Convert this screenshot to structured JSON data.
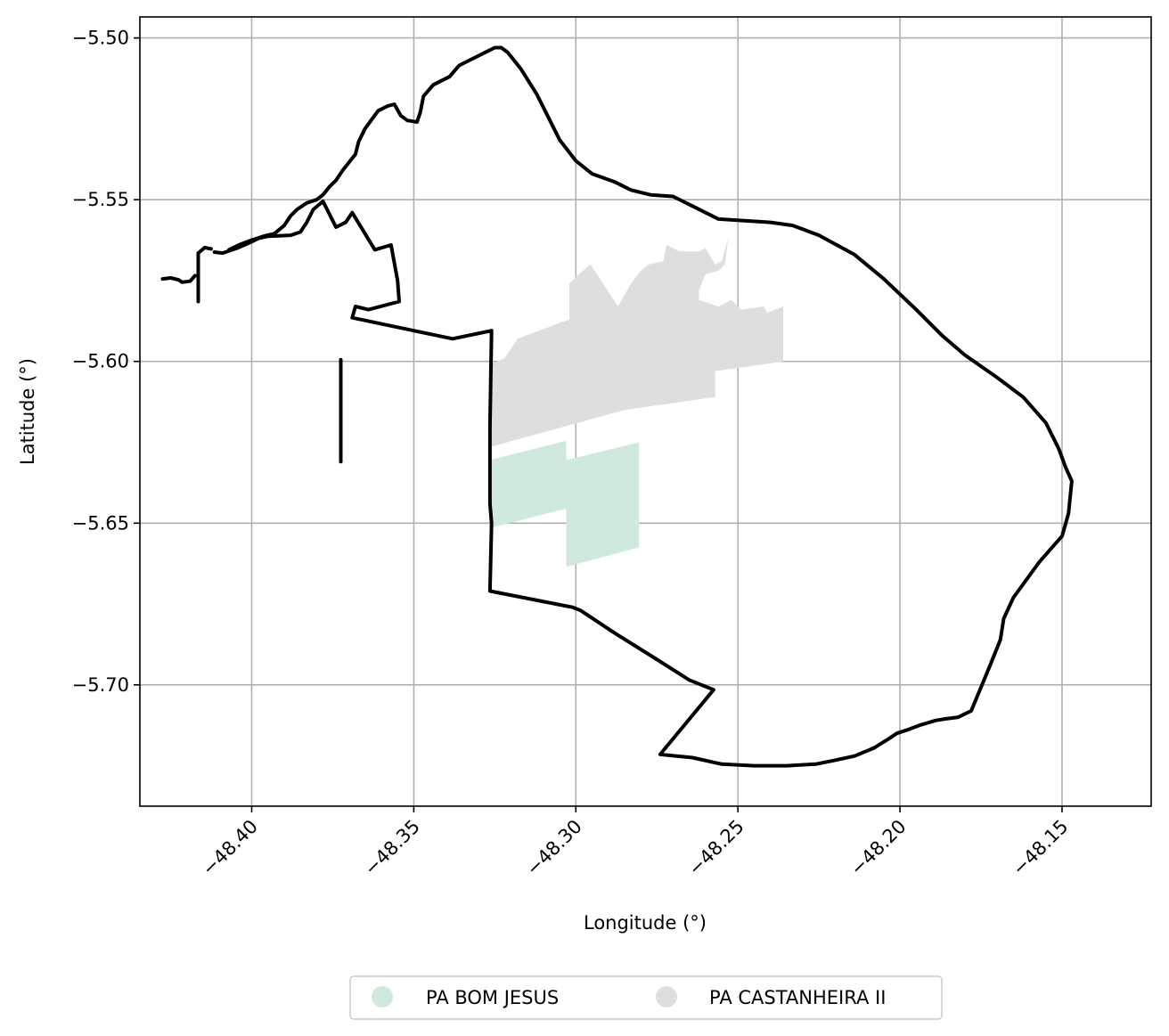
{
  "chart_data": {
    "type": "map",
    "xlabel": "Longitude (°)",
    "ylabel": "Latitude (°)",
    "xlim": [
      -48.4345,
      -48.1225
    ],
    "ylim": [
      -5.7375,
      -5.4935
    ],
    "grid": true,
    "x_ticks": [
      {
        "value": -48.4,
        "label": "−48.40"
      },
      {
        "value": -48.35,
        "label": "−48.35"
      },
      {
        "value": -48.3,
        "label": "−48.30"
      },
      {
        "value": -48.25,
        "label": "−48.25"
      },
      {
        "value": -48.2,
        "label": "−48.20"
      },
      {
        "value": -48.15,
        "label": "−48.15"
      }
    ],
    "y_ticks": [
      {
        "value": -5.5,
        "label": "−5.50"
      },
      {
        "value": -5.55,
        "label": "−5.55"
      },
      {
        "value": -5.6,
        "label": "−5.60"
      },
      {
        "value": -5.65,
        "label": "−5.65"
      },
      {
        "value": -5.7,
        "label": "−5.70"
      }
    ],
    "legend_position": "bottom-center",
    "areas": [
      {
        "name": "PA BOM JESUS",
        "color": "#cfeadd",
        "polygons": [
          [
            [
              -48.3265,
              -5.6305
            ],
            [
              -48.303,
              -5.6245
            ],
            [
              -48.303,
              -5.6305
            ],
            [
              -48.2805,
              -5.625
            ],
            [
              -48.2805,
              -5.6575
            ],
            [
              -48.303,
              -5.6635
            ],
            [
              -48.303,
              -5.6455
            ],
            [
              -48.3265,
              -5.6515
            ]
          ]
        ]
      },
      {
        "name": "PA CASTANHEIRA II",
        "color": "#dedede",
        "polygons": [
          [
            [
              -48.3265,
              -5.6265
            ],
            [
              -48.3265,
              -5.601
            ],
            [
              -48.322,
              -5.599
            ],
            [
              -48.318,
              -5.593
            ],
            [
              -48.302,
              -5.587
            ],
            [
              -48.302,
              -5.576
            ],
            [
              -48.299,
              -5.573
            ],
            [
              -48.2955,
              -5.57
            ],
            [
              -48.287,
              -5.583
            ],
            [
              -48.283,
              -5.576
            ],
            [
              -48.28,
              -5.572
            ],
            [
              -48.2775,
              -5.57
            ],
            [
              -48.273,
              -5.569
            ],
            [
              -48.272,
              -5.564
            ],
            [
              -48.268,
              -5.566
            ],
            [
              -48.262,
              -5.566
            ],
            [
              -48.26,
              -5.565
            ],
            [
              -48.257,
              -5.57
            ],
            [
              -48.255,
              -5.569
            ],
            [
              -48.253,
              -5.562
            ],
            [
              -48.254,
              -5.57
            ],
            [
              -48.256,
              -5.572
            ],
            [
              -48.26,
              -5.573
            ],
            [
              -48.262,
              -5.578
            ],
            [
              -48.262,
              -5.581
            ],
            [
              -48.256,
              -5.583
            ],
            [
              -48.252,
              -5.581
            ],
            [
              -48.249,
              -5.584
            ],
            [
              -48.242,
              -5.583
            ],
            [
              -48.241,
              -5.585
            ],
            [
              -48.236,
              -5.583
            ],
            [
              -48.236,
              -5.6
            ],
            [
              -48.257,
              -5.603
            ],
            [
              -48.257,
              -5.611
            ],
            [
              -48.285,
              -5.615
            ]
          ]
        ]
      }
    ],
    "boundary": {
      "color": "#000000",
      "lines": [
        [
          [
            -48.4275,
            -5.5745
          ],
          [
            -48.425,
            -5.5742
          ],
          [
            -48.4225,
            -5.5748
          ],
          [
            -48.4215,
            -5.5755
          ],
          [
            -48.419,
            -5.5752
          ],
          [
            -48.4175,
            -5.5735
          ]
        ],
        [
          [
            -48.4165,
            -5.5815
          ],
          [
            -48.4165,
            -5.5665
          ],
          [
            -48.4145,
            -5.5648
          ],
          [
            -48.4125,
            -5.5652
          ]
        ],
        [
          [
            -48.4115,
            -5.5662
          ],
          [
            -48.409,
            -5.5665
          ],
          [
            -48.4045,
            -5.565
          ],
          [
            -48.4,
            -5.563
          ],
          [
            -48.398,
            -5.562
          ],
          [
            -48.395,
            -5.5613
          ],
          [
            -48.388,
            -5.561
          ],
          [
            -48.385,
            -5.56
          ],
          [
            -48.383,
            -5.557
          ],
          [
            -48.381,
            -5.553
          ],
          [
            -48.378,
            -5.5505
          ],
          [
            -48.374,
            -5.5585
          ],
          [
            -48.371,
            -5.557
          ],
          [
            -48.369,
            -5.554
          ],
          [
            -48.362,
            -5.5655
          ],
          [
            -48.357,
            -5.564
          ],
          [
            -48.355,
            -5.575
          ],
          [
            -48.3545,
            -5.5815
          ],
          [
            -48.364,
            -5.584
          ],
          [
            -48.368,
            -5.583
          ],
          [
            -48.369,
            -5.5865
          ],
          [
            -48.35,
            -5.5905
          ],
          [
            -48.338,
            -5.593
          ],
          [
            -48.326,
            -5.5905
          ],
          [
            -48.3265,
            -5.62
          ],
          [
            -48.3265,
            -5.634
          ],
          [
            -48.3265,
            -5.644
          ],
          [
            -48.326,
            -5.65
          ],
          [
            -48.3265,
            -5.671
          ],
          [
            -48.301,
            -5.676
          ],
          [
            -48.2985,
            -5.677
          ],
          [
            -48.288,
            -5.684
          ],
          [
            -48.276,
            -5.6915
          ],
          [
            -48.265,
            -5.6985
          ],
          [
            -48.2575,
            -5.7015
          ],
          [
            -48.274,
            -5.7215
          ],
          [
            -48.264,
            -5.7225
          ],
          [
            -48.255,
            -5.7245
          ],
          [
            -48.245,
            -5.725
          ],
          [
            -48.235,
            -5.725
          ],
          [
            -48.226,
            -5.7245
          ],
          [
            -48.221,
            -5.7235
          ],
          [
            -48.214,
            -5.722
          ],
          [
            -48.208,
            -5.7195
          ],
          [
            -48.204,
            -5.717
          ],
          [
            -48.201,
            -5.715
          ],
          [
            -48.198,
            -5.714
          ],
          [
            -48.194,
            -5.7125
          ],
          [
            -48.189,
            -5.711
          ],
          [
            -48.186,
            -5.7105
          ],
          [
            -48.182,
            -5.71
          ],
          [
            -48.178,
            -5.708
          ],
          [
            -48.172,
            -5.6935
          ],
          [
            -48.169,
            -5.686
          ],
          [
            -48.168,
            -5.6795
          ],
          [
            -48.165,
            -5.673
          ],
          [
            -48.157,
            -5.662
          ],
          [
            -48.15,
            -5.654
          ],
          [
            -48.148,
            -5.647
          ],
          [
            -48.147,
            -5.637
          ],
          [
            -48.149,
            -5.6325
          ],
          [
            -48.151,
            -5.627
          ],
          [
            -48.155,
            -5.619
          ],
          [
            -48.162,
            -5.611
          ],
          [
            -48.17,
            -5.605
          ],
          [
            -48.18,
            -5.598
          ],
          [
            -48.187,
            -5.592
          ],
          [
            -48.195,
            -5.584
          ],
          [
            -48.205,
            -5.5745
          ],
          [
            -48.214,
            -5.567
          ],
          [
            -48.225,
            -5.561
          ],
          [
            -48.233,
            -5.558
          ],
          [
            -48.24,
            -5.557
          ],
          [
            -48.248,
            -5.5565
          ],
          [
            -48.256,
            -5.556
          ],
          [
            -48.265,
            -5.5515
          ],
          [
            -48.27,
            -5.549
          ],
          [
            -48.277,
            -5.5485
          ],
          [
            -48.283,
            -5.547
          ],
          [
            -48.288,
            -5.5445
          ],
          [
            -48.295,
            -5.542
          ],
          [
            -48.3,
            -5.538
          ],
          [
            -48.305,
            -5.5315
          ],
          [
            -48.312,
            -5.5175
          ],
          [
            -48.317,
            -5.5095
          ],
          [
            -48.321,
            -5.5045
          ],
          [
            -48.323,
            -5.503
          ],
          [
            -48.325,
            -5.503
          ],
          [
            -48.328,
            -5.5045
          ],
          [
            -48.331,
            -5.506
          ],
          [
            -48.333,
            -5.507
          ],
          [
            -48.336,
            -5.5085
          ],
          [
            -48.339,
            -5.512
          ],
          [
            -48.342,
            -5.5135
          ],
          [
            -48.344,
            -5.5145
          ],
          [
            -48.347,
            -5.518
          ],
          [
            -48.348,
            -5.523
          ],
          [
            -48.349,
            -5.526
          ],
          [
            -48.352,
            -5.5255
          ],
          [
            -48.354,
            -5.524
          ],
          [
            -48.356,
            -5.5205
          ],
          [
            -48.358,
            -5.521
          ],
          [
            -48.361,
            -5.5225
          ],
          [
            -48.365,
            -5.528
          ],
          [
            -48.367,
            -5.532
          ],
          [
            -48.368,
            -5.536
          ],
          [
            -48.37,
            -5.5385
          ],
          [
            -48.372,
            -5.541
          ],
          [
            -48.374,
            -5.544
          ],
          [
            -48.376,
            -5.546
          ],
          [
            -48.378,
            -5.5485
          ],
          [
            -48.38,
            -5.55
          ],
          [
            -48.383,
            -5.551
          ],
          [
            -48.386,
            -5.553
          ],
          [
            -48.388,
            -5.555
          ],
          [
            -48.39,
            -5.558
          ],
          [
            -48.393,
            -5.5605
          ],
          [
            -48.396,
            -5.5612
          ],
          [
            -48.4,
            -5.5625
          ],
          [
            -48.404,
            -5.564
          ],
          [
            -48.407,
            -5.5655
          ]
        ],
        [
          [
            -48.3725,
            -5.5995
          ],
          [
            -48.3725,
            -5.631
          ]
        ]
      ]
    }
  },
  "legend": {
    "items": [
      {
        "label": "PA BOM JESUS",
        "color": "#cfeadd"
      },
      {
        "label": "PA CASTANHEIRA II",
        "color": "#dedede"
      }
    ]
  }
}
